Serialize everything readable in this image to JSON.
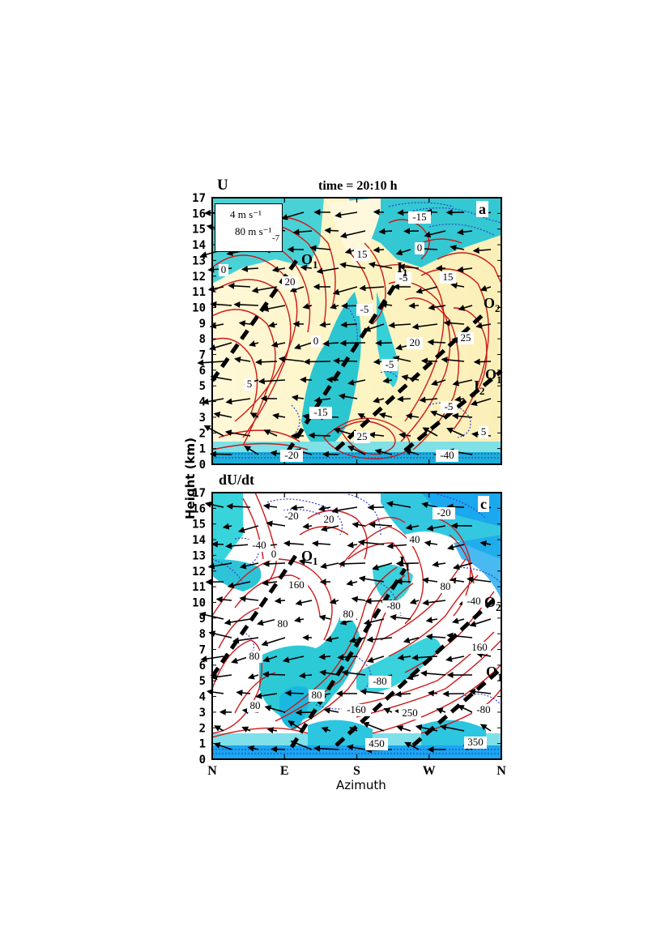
{
  "figure": {
    "time_label": "time = 20:10 h",
    "y_axis_label": "Height (km)",
    "x_axis_label": "Azimuth",
    "legend": {
      "vertical_scale": "4 m s⁻¹",
      "horizontal_scale": "80 m s⁻¹",
      "extra": "-7"
    }
  },
  "chart_data": [
    {
      "type": "heatmap",
      "panel_letter": "a",
      "title": "U",
      "yticks": [
        0,
        1,
        2,
        3,
        4,
        5,
        6,
        7,
        8,
        9,
        10,
        11,
        12,
        13,
        14,
        15,
        16,
        17
      ],
      "ylim": [
        0,
        17
      ],
      "xticks": [
        "N",
        "E",
        "S",
        "W",
        "N"
      ],
      "filled": true,
      "contour_colors": {
        "positive": "#cc1a1a",
        "negative": "#3344cc"
      },
      "fill_colors": {
        "positive": "#fdf7cc",
        "negative": "#2cc6d0"
      },
      "contour_labels": [
        "-15",
        "0",
        "15",
        "-5",
        "20",
        "-5",
        "0",
        "20",
        "25",
        "0",
        "-5",
        "15",
        "5",
        "-15",
        "25",
        "-5",
        "5",
        "-20",
        "-40"
      ],
      "features": [
        "O1",
        "I1",
        "O2",
        "I2",
        "O1"
      ],
      "thick_dashed_lines": 4
    },
    {
      "type": "heatmap",
      "panel_letter": "c",
      "title": "dU/dt",
      "yticks": [
        0,
        1,
        2,
        3,
        4,
        5,
        6,
        7,
        8,
        9,
        10,
        11,
        12,
        13,
        14,
        15,
        16,
        17
      ],
      "ylim": [
        0,
        17
      ],
      "xticks": [
        "N",
        "E",
        "S",
        "W",
        "N"
      ],
      "filled": true,
      "contour_colors": {
        "positive": "#cc1a1a",
        "negative": "#3344cc"
      },
      "fill_colors": {
        "negative_strong": "#1aa6f0",
        "negative": "#35d6de"
      },
      "contour_labels": [
        "-20",
        "20",
        "-20",
        "-40",
        "0",
        "40",
        "160",
        "-80",
        "80",
        "80",
        "80",
        "-40",
        "80",
        "160",
        "-80",
        "80",
        "80",
        "-160",
        "250",
        "-80",
        "450",
        "350"
      ],
      "features": [
        "O1",
        "I1",
        "O2",
        "O1"
      ],
      "thick_dashed_lines": 4
    }
  ]
}
